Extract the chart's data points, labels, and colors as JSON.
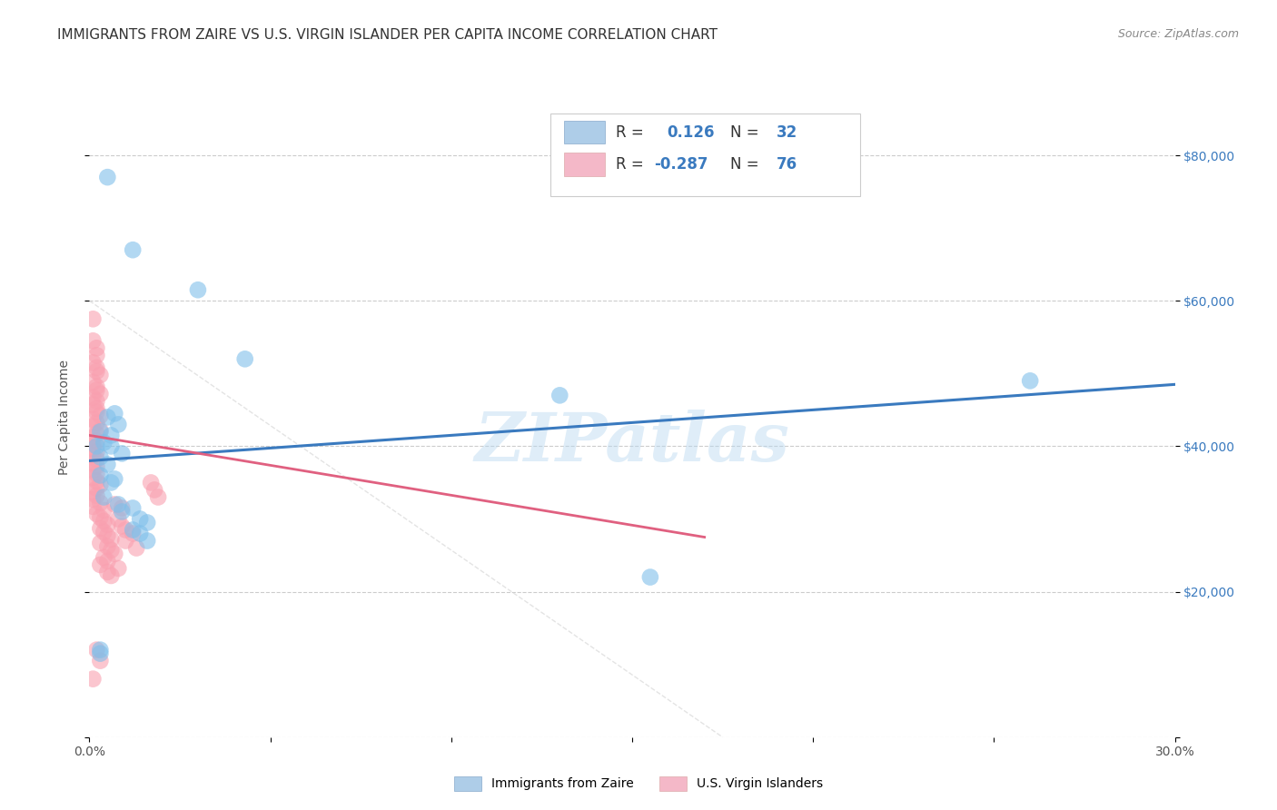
{
  "title": "IMMIGRANTS FROM ZAIRE VS U.S. VIRGIN ISLANDER PER CAPITA INCOME CORRELATION CHART",
  "source": "Source: ZipAtlas.com",
  "ylabel": "Per Capita Income",
  "xlim": [
    0.0,
    0.3
  ],
  "ylim": [
    0,
    88000
  ],
  "xticks": [
    0.0,
    0.05,
    0.1,
    0.15,
    0.2,
    0.25,
    0.3
  ],
  "yticks": [
    0,
    20000,
    40000,
    60000,
    80000
  ],
  "background_color": "#ffffff",
  "grid_color": "#cccccc",
  "watermark": "ZIPatlas",
  "blue_color": "#7fbfea",
  "pink_color": "#f9a0b0",
  "blue_scatter": [
    [
      0.005,
      77000
    ],
    [
      0.012,
      67000
    ],
    [
      0.03,
      61500
    ],
    [
      0.043,
      52000
    ],
    [
      0.003,
      42000
    ],
    [
      0.005,
      44000
    ],
    [
      0.007,
      44500
    ],
    [
      0.008,
      43000
    ],
    [
      0.006,
      41500
    ],
    [
      0.004,
      40500
    ],
    [
      0.006,
      40000
    ],
    [
      0.009,
      39000
    ],
    [
      0.003,
      38500
    ],
    [
      0.005,
      37500
    ],
    [
      0.003,
      36000
    ],
    [
      0.007,
      35500
    ],
    [
      0.006,
      35000
    ],
    [
      0.004,
      33000
    ],
    [
      0.008,
      32000
    ],
    [
      0.009,
      31000
    ],
    [
      0.012,
      31500
    ],
    [
      0.014,
      30000
    ],
    [
      0.016,
      29500
    ],
    [
      0.012,
      28500
    ],
    [
      0.014,
      28000
    ],
    [
      0.016,
      27000
    ],
    [
      0.003,
      12000
    ],
    [
      0.003,
      11500
    ],
    [
      0.13,
      47000
    ],
    [
      0.26,
      49000
    ],
    [
      0.155,
      22000
    ],
    [
      0.002,
      40000
    ]
  ],
  "pink_scatter": [
    [
      0.001,
      57500
    ],
    [
      0.001,
      54500
    ],
    [
      0.002,
      53500
    ],
    [
      0.002,
      52500
    ],
    [
      0.001,
      51500
    ],
    [
      0.002,
      50800
    ],
    [
      0.002,
      50300
    ],
    [
      0.003,
      49800
    ],
    [
      0.001,
      48800
    ],
    [
      0.002,
      48200
    ],
    [
      0.002,
      47700
    ],
    [
      0.003,
      47200
    ],
    [
      0.001,
      46700
    ],
    [
      0.002,
      46200
    ],
    [
      0.001,
      45700
    ],
    [
      0.002,
      45200
    ],
    [
      0.002,
      44700
    ],
    [
      0.003,
      44200
    ],
    [
      0.001,
      43700
    ],
    [
      0.002,
      43200
    ],
    [
      0.001,
      42700
    ],
    [
      0.003,
      42200
    ],
    [
      0.002,
      41700
    ],
    [
      0.001,
      41200
    ],
    [
      0.002,
      40700
    ],
    [
      0.001,
      40200
    ],
    [
      0.001,
      39700
    ],
    [
      0.002,
      39200
    ],
    [
      0.001,
      38700
    ],
    [
      0.002,
      38200
    ],
    [
      0.001,
      37700
    ],
    [
      0.002,
      37200
    ],
    [
      0.001,
      36700
    ],
    [
      0.002,
      36200
    ],
    [
      0.001,
      35700
    ],
    [
      0.002,
      35200
    ],
    [
      0.003,
      34700
    ],
    [
      0.002,
      34200
    ],
    [
      0.001,
      33700
    ],
    [
      0.002,
      33200
    ],
    [
      0.001,
      32700
    ],
    [
      0.003,
      32200
    ],
    [
      0.001,
      31700
    ],
    [
      0.004,
      31200
    ],
    [
      0.002,
      30700
    ],
    [
      0.003,
      30200
    ],
    [
      0.004,
      29700
    ],
    [
      0.005,
      29200
    ],
    [
      0.003,
      28700
    ],
    [
      0.004,
      28200
    ],
    [
      0.005,
      27700
    ],
    [
      0.006,
      27200
    ],
    [
      0.003,
      26700
    ],
    [
      0.005,
      26200
    ],
    [
      0.006,
      25700
    ],
    [
      0.007,
      25200
    ],
    [
      0.004,
      24700
    ],
    [
      0.005,
      24200
    ],
    [
      0.003,
      23700
    ],
    [
      0.008,
      23200
    ],
    [
      0.005,
      22700
    ],
    [
      0.006,
      22200
    ],
    [
      0.008,
      30000
    ],
    [
      0.009,
      29000
    ],
    [
      0.01,
      28500
    ],
    [
      0.007,
      32000
    ],
    [
      0.009,
      31500
    ],
    [
      0.012,
      28000
    ],
    [
      0.01,
      27000
    ],
    [
      0.013,
      26000
    ],
    [
      0.002,
      12000
    ],
    [
      0.003,
      10500
    ],
    [
      0.001,
      8000
    ],
    [
      0.018,
      34000
    ],
    [
      0.019,
      33000
    ],
    [
      0.017,
      35000
    ]
  ],
  "blue_line_x": [
    0.0,
    0.3
  ],
  "blue_line_y": [
    38000,
    48500
  ],
  "pink_line_x": [
    0.0,
    0.17
  ],
  "pink_line_y": [
    41500,
    27500
  ],
  "diag_line_x": [
    0.0,
    0.175
  ],
  "diag_line_y": [
    60000,
    0
  ],
  "title_fontsize": 11,
  "axis_label_fontsize": 10,
  "tick_fontsize": 10,
  "legend_fontsize": 12
}
